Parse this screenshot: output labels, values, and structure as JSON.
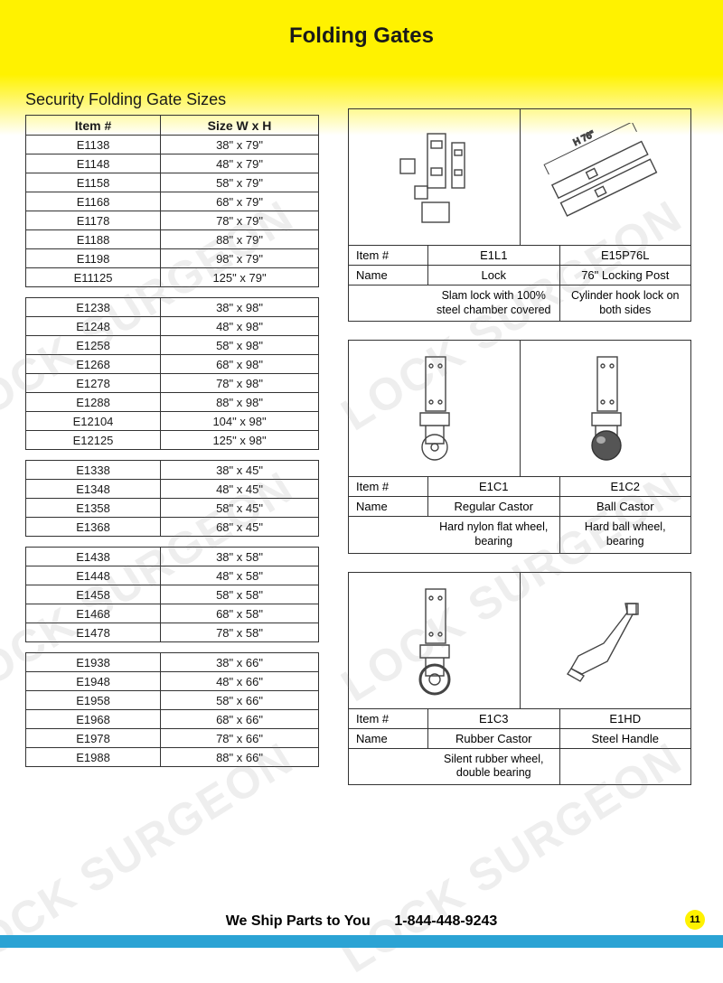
{
  "page_title": "Folding Gates",
  "section_title": "Security Folding Gate Sizes",
  "colors": {
    "header_yellow": "#fff200",
    "footer_blue": "#2ba3d4",
    "border": "#333333",
    "text": "#1a1a1a",
    "watermark": "rgba(120,120,120,0.13)"
  },
  "size_table_headers": {
    "col1": "Item #",
    "col2": "Size W x H"
  },
  "size_groups": [
    [
      {
        "item": "E1138",
        "size": "38\" x 79\""
      },
      {
        "item": "E1148",
        "size": "48\" x 79\""
      },
      {
        "item": "E1158",
        "size": "58\" x 79\""
      },
      {
        "item": "E1168",
        "size": "68\" x 79\""
      },
      {
        "item": "E1178",
        "size": "78\" x 79\""
      },
      {
        "item": "E1188",
        "size": "88\" x 79\""
      },
      {
        "item": "E1198",
        "size": "98\" x 79\""
      },
      {
        "item": "E11125",
        "size": "125\" x 79\""
      }
    ],
    [
      {
        "item": "E1238",
        "size": "38\" x 98\""
      },
      {
        "item": "E1248",
        "size": "48\" x 98\""
      },
      {
        "item": "E1258",
        "size": "58\" x 98\""
      },
      {
        "item": "E1268",
        "size": "68\" x 98\""
      },
      {
        "item": "E1278",
        "size": "78\" x 98\""
      },
      {
        "item": "E1288",
        "size": "88\" x 98\""
      },
      {
        "item": "E12104",
        "size": "104\" x 98\""
      },
      {
        "item": "E12125",
        "size": "125\" x 98\""
      }
    ],
    [
      {
        "item": "E1338",
        "size": "38\" x 45\""
      },
      {
        "item": "E1348",
        "size": "48\" x 45\""
      },
      {
        "item": "E1358",
        "size": "58\" x 45\""
      },
      {
        "item": "E1368",
        "size": "68\" x 45\""
      }
    ],
    [
      {
        "item": "E1438",
        "size": "38\" x 58\""
      },
      {
        "item": "E1448",
        "size": "48\" x 58\""
      },
      {
        "item": "E1458",
        "size": "58\" x 58\""
      },
      {
        "item": "E1468",
        "size": "68\" x 58\""
      },
      {
        "item": "E1478",
        "size": "78\" x 58\""
      }
    ],
    [
      {
        "item": "E1938",
        "size": "38\" x 66\""
      },
      {
        "item": "E1948",
        "size": "48\" x 66\""
      },
      {
        "item": "E1958",
        "size": "58\" x 66\""
      },
      {
        "item": "E1968",
        "size": "68\" x 66\""
      },
      {
        "item": "E1978",
        "size": "78\" x 66\""
      },
      {
        "item": "E1988",
        "size": "88\" x 66\""
      }
    ]
  ],
  "product_labels": {
    "item": "Item #",
    "name": "Name"
  },
  "products": [
    {
      "a": {
        "item": "E1L1",
        "name": "Lock",
        "desc": "Slam lock with 100% steel chamber covered",
        "dim_label": ""
      },
      "b": {
        "item": "E15P76L",
        "name": "76\" Locking Post",
        "desc": "Cylinder hook lock on both sides",
        "dim_label": "H 76\""
      }
    },
    {
      "a": {
        "item": "E1C1",
        "name": "Regular Castor",
        "desc": "Hard nylon flat wheel, bearing"
      },
      "b": {
        "item": "E1C2",
        "name": "Ball Castor",
        "desc": "Hard ball wheel, bearing"
      }
    },
    {
      "a": {
        "item": "E1C3",
        "name": "Rubber Castor",
        "desc": "Silent rubber wheel, double bearing"
      },
      "b": {
        "item": "E1HD",
        "name": "Steel Handle",
        "desc": ""
      }
    }
  ],
  "footer": {
    "ship": "We Ship Parts to You",
    "phone": "1-844-448-9243"
  },
  "page_number": "11",
  "watermark_text": "LOCK SURGEON"
}
